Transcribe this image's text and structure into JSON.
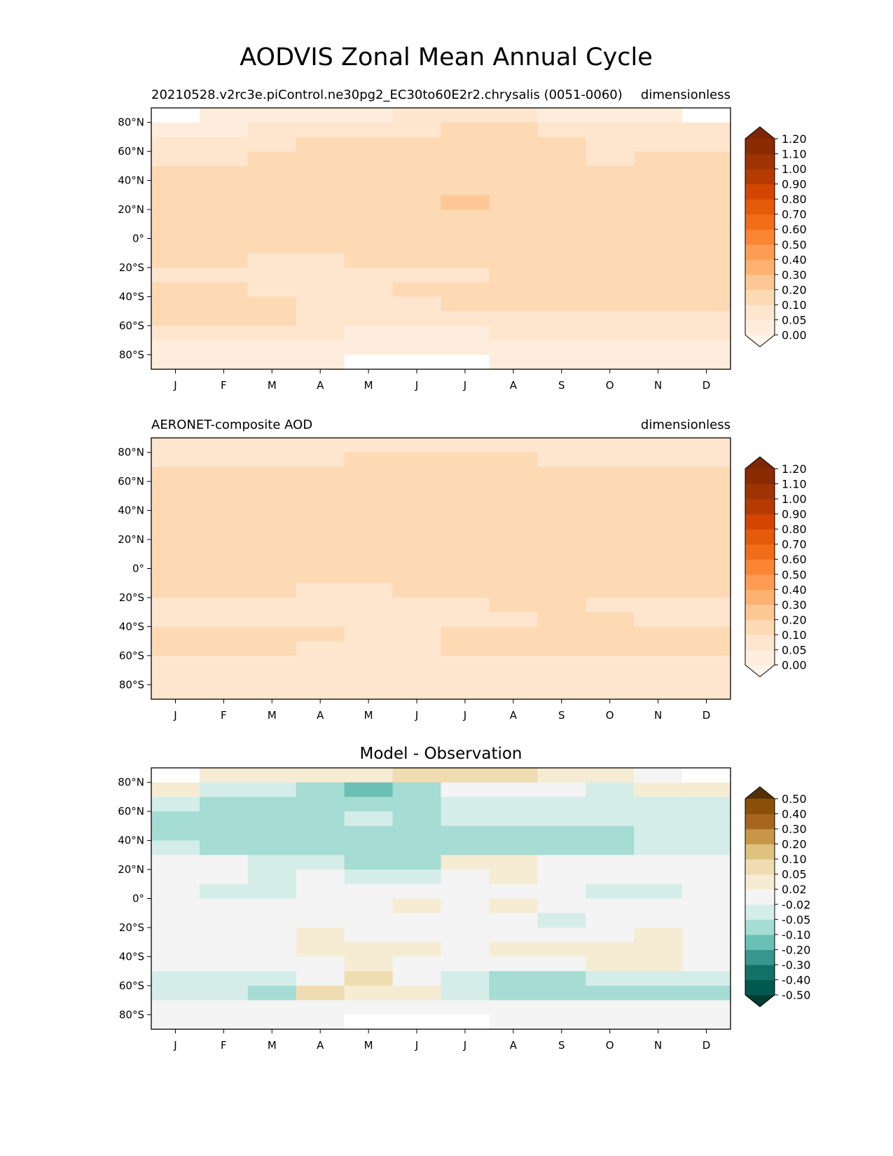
{
  "figure_title": "AODVIS Zonal Mean Annual Cycle",
  "months": [
    "J",
    "F",
    "M",
    "A",
    "M",
    "J",
    "J",
    "A",
    "S",
    "O",
    "N",
    "D"
  ],
  "lat_ticks": [
    80,
    60,
    40,
    20,
    0,
    -20,
    -40,
    -60,
    -80
  ],
  "lat_tick_labels": [
    "80°N",
    "60°N",
    "40°N",
    "20°N",
    "0°",
    "20°S",
    "40°S",
    "60°S",
    "80°S"
  ],
  "lat_bands": [
    85,
    75,
    65,
    55,
    45,
    35,
    25,
    15,
    5,
    -5,
    -15,
    -25,
    -35,
    -45,
    -55,
    -65,
    -75,
    -85
  ],
  "chart_data": [
    {
      "type": "heatmap",
      "name": "model",
      "title_left": "20210528.v2rc3e.piControl.ne30pg2_EC30to60E2r2.chrysalis (0051-0060)",
      "title_center": "",
      "title_right": "dimensionless",
      "xlabel": "",
      "ylabel": "",
      "ylim": [
        -90,
        90
      ],
      "colorbar": {
        "levels": [
          0.0,
          0.05,
          0.1,
          0.2,
          0.3,
          0.4,
          0.5,
          0.6,
          0.7,
          0.8,
          0.9,
          1.0,
          1.1,
          1.2
        ],
        "labels": [
          "0.00",
          "0.05",
          "0.10",
          "0.20",
          "0.30",
          "0.40",
          "0.50",
          "0.60",
          "0.70",
          "0.80",
          "0.90",
          "1.00",
          "1.10",
          "1.20"
        ],
        "colors": [
          "#fff5eb",
          "#feeddc",
          "#fee6ce",
          "#fdd9b4",
          "#fdc895",
          "#fdb272",
          "#fd9c52",
          "#fa8532",
          "#f26d18",
          "#e55a0b",
          "#d44501",
          "#b43b02",
          "#9e3303",
          "#8a2b03",
          "#7f2704"
        ]
      },
      "values": [
        [
          null,
          0.03,
          0.04,
          0.04,
          0.04,
          0.08,
          0.09,
          0.08,
          0.04,
          0.02,
          0.01,
          null
        ],
        [
          0.04,
          0.04,
          0.05,
          0.07,
          0.08,
          0.09,
          0.12,
          0.11,
          0.07,
          0.05,
          0.05,
          0.06
        ],
        [
          0.06,
          0.07,
          0.09,
          0.11,
          0.11,
          0.12,
          0.13,
          0.13,
          0.1,
          0.08,
          0.08,
          0.08
        ],
        [
          0.08,
          0.09,
          0.12,
          0.14,
          0.14,
          0.13,
          0.13,
          0.13,
          0.12,
          0.09,
          0.1,
          0.1
        ],
        [
          0.1,
          0.11,
          0.13,
          0.15,
          0.15,
          0.13,
          0.13,
          0.13,
          0.12,
          0.11,
          0.12,
          0.12
        ],
        [
          0.13,
          0.14,
          0.14,
          0.15,
          0.14,
          0.14,
          0.16,
          0.17,
          0.14,
          0.13,
          0.14,
          0.14
        ],
        [
          0.15,
          0.15,
          0.16,
          0.19,
          0.15,
          0.17,
          0.22,
          0.19,
          0.17,
          0.14,
          0.15,
          0.15
        ],
        [
          0.18,
          0.17,
          0.19,
          0.18,
          0.15,
          0.15,
          0.16,
          0.16,
          0.15,
          0.14,
          0.15,
          0.15
        ],
        [
          0.15,
          0.14,
          0.13,
          0.13,
          0.13,
          0.13,
          0.14,
          0.14,
          0.14,
          0.14,
          0.14,
          0.14
        ],
        [
          0.13,
          0.13,
          0.11,
          0.11,
          0.13,
          0.13,
          0.13,
          0.13,
          0.13,
          0.13,
          0.13,
          0.13
        ],
        [
          0.11,
          0.11,
          0.09,
          0.09,
          0.1,
          0.11,
          0.11,
          0.13,
          0.13,
          0.13,
          0.13,
          0.12
        ],
        [
          0.09,
          0.09,
          0.08,
          0.08,
          0.09,
          0.09,
          0.09,
          0.12,
          0.12,
          0.12,
          0.11,
          0.11
        ],
        [
          0.1,
          0.1,
          0.09,
          0.09,
          0.09,
          0.1,
          0.12,
          0.12,
          0.12,
          0.12,
          0.12,
          0.11
        ],
        [
          0.13,
          0.13,
          0.12,
          0.09,
          0.09,
          0.09,
          0.11,
          0.11,
          0.11,
          0.11,
          0.12,
          0.12
        ],
        [
          0.1,
          0.1,
          0.1,
          0.09,
          0.08,
          0.08,
          0.08,
          0.09,
          0.09,
          0.09,
          0.09,
          0.09
        ],
        [
          0.06,
          0.05,
          0.05,
          0.05,
          0.04,
          0.04,
          0.04,
          0.05,
          0.05,
          0.05,
          0.05,
          0.05
        ],
        [
          0.04,
          0.04,
          0.04,
          0.04,
          0.03,
          0.02,
          0.02,
          0.03,
          0.04,
          0.04,
          0.04,
          0.04
        ],
        [
          0.03,
          0.03,
          0.03,
          0.02,
          null,
          null,
          null,
          0.01,
          0.03,
          0.03,
          0.03,
          0.03
        ]
      ]
    },
    {
      "type": "heatmap",
      "name": "observation",
      "title_left": "AERONET-composite AOD",
      "title_center": "",
      "title_right": "dimensionless",
      "xlabel": "",
      "ylabel": "",
      "ylim": [
        -90,
        90
      ],
      "colorbar": {
        "levels": [
          0.0,
          0.05,
          0.1,
          0.2,
          0.3,
          0.4,
          0.5,
          0.6,
          0.7,
          0.8,
          0.9,
          1.0,
          1.1,
          1.2
        ],
        "labels": [
          "0.00",
          "0.05",
          "0.10",
          "0.20",
          "0.30",
          "0.40",
          "0.50",
          "0.60",
          "0.70",
          "0.80",
          "0.90",
          "1.00",
          "1.10",
          "1.20"
        ],
        "colors": [
          "#fff5eb",
          "#feeddc",
          "#fee6ce",
          "#fdd9b4",
          "#fdc895",
          "#fdb272",
          "#fd9c52",
          "#fa8532",
          "#f26d18",
          "#e55a0b",
          "#d44501",
          "#b43b02",
          "#9e3303",
          "#8a2b03",
          "#7f2704"
        ]
      },
      "values": [
        [
          0.06,
          0.06,
          0.06,
          0.06,
          0.06,
          0.06,
          0.06,
          0.06,
          0.06,
          0.06,
          0.06,
          0.06
        ],
        [
          0.08,
          0.08,
          0.09,
          0.09,
          0.11,
          0.11,
          0.11,
          0.11,
          0.09,
          0.09,
          0.08,
          0.08
        ],
        [
          0.11,
          0.12,
          0.12,
          0.13,
          0.13,
          0.13,
          0.13,
          0.13,
          0.12,
          0.11,
          0.11,
          0.1
        ],
        [
          0.12,
          0.13,
          0.14,
          0.15,
          0.15,
          0.15,
          0.15,
          0.15,
          0.13,
          0.12,
          0.12,
          0.12
        ],
        [
          0.13,
          0.13,
          0.16,
          0.16,
          0.16,
          0.16,
          0.16,
          0.16,
          0.13,
          0.12,
          0.12,
          0.12
        ],
        [
          0.13,
          0.13,
          0.16,
          0.16,
          0.16,
          0.16,
          0.16,
          0.16,
          0.14,
          0.12,
          0.12,
          0.12
        ],
        [
          0.14,
          0.14,
          0.16,
          0.16,
          0.16,
          0.16,
          0.16,
          0.15,
          0.15,
          0.12,
          0.12,
          0.12
        ],
        [
          0.16,
          0.15,
          0.15,
          0.15,
          0.15,
          0.14,
          0.14,
          0.14,
          0.13,
          0.12,
          0.12,
          0.12
        ],
        [
          0.13,
          0.13,
          0.14,
          0.14,
          0.13,
          0.13,
          0.13,
          0.13,
          0.13,
          0.12,
          0.12,
          0.12
        ],
        [
          0.12,
          0.12,
          0.12,
          0.12,
          0.12,
          0.12,
          0.12,
          0.12,
          0.16,
          0.12,
          0.12,
          0.12
        ],
        [
          0.11,
          0.1,
          0.1,
          0.09,
          0.09,
          0.1,
          0.1,
          0.11,
          0.11,
          0.11,
          0.1,
          0.1
        ],
        [
          0.09,
          0.09,
          0.09,
          0.09,
          0.09,
          0.09,
          0.09,
          0.1,
          0.1,
          0.09,
          0.09,
          0.09
        ],
        [
          0.09,
          0.09,
          0.09,
          0.09,
          0.09,
          0.09,
          0.09,
          0.09,
          0.11,
          0.11,
          0.09,
          0.09
        ],
        [
          0.12,
          0.12,
          0.12,
          0.1,
          0.09,
          0.09,
          0.12,
          0.12,
          0.12,
          0.12,
          0.12,
          0.12
        ],
        [
          0.12,
          0.12,
          0.12,
          0.08,
          0.07,
          0.08,
          0.11,
          0.11,
          0.12,
          0.12,
          0.12,
          0.12
        ],
        [
          0.08,
          0.07,
          0.07,
          0.06,
          0.06,
          0.06,
          0.07,
          0.08,
          0.08,
          0.07,
          0.07,
          0.07
        ],
        [
          0.06,
          0.06,
          0.06,
          0.06,
          0.06,
          0.06,
          0.06,
          0.06,
          0.06,
          0.06,
          0.06,
          0.06
        ],
        [
          0.06,
          0.06,
          0.06,
          0.06,
          0.06,
          0.06,
          0.06,
          0.06,
          0.06,
          0.06,
          0.06,
          0.06
        ]
      ]
    },
    {
      "type": "heatmap",
      "name": "difference",
      "title_left": "",
      "title_center": "Model - Observation",
      "title_right": "",
      "xlabel": "",
      "ylabel": "",
      "ylim": [
        -90,
        90
      ],
      "colorbar": {
        "levels": [
          -0.5,
          -0.4,
          -0.3,
          -0.2,
          -0.1,
          -0.05,
          -0.02,
          0.02,
          0.05,
          0.1,
          0.2,
          0.3,
          0.4,
          0.5
        ],
        "labels": [
          "-0.50",
          "-0.40",
          "-0.30",
          "-0.20",
          "-0.10",
          "-0.05",
          "-0.02",
          "0.02",
          "0.05",
          "0.10",
          "0.20",
          "0.30",
          "0.40",
          "0.50"
        ],
        "colors": [
          "#003c30",
          "#01594f",
          "#137167",
          "#35978f",
          "#6bc0b5",
          "#a5dcd3",
          "#d4ede9",
          "#f3f4f3",
          "#f6ecd4",
          "#efdcb0",
          "#dfc27d",
          "#c79647",
          "#a6671c",
          "#8a5009",
          "#543005"
        ]
      },
      "values": [
        [
          null,
          0.03,
          0.03,
          0.03,
          0.03,
          0.06,
          0.06,
          0.06,
          0.03,
          0.03,
          0.0,
          null
        ],
        [
          0.03,
          -0.03,
          -0.03,
          -0.06,
          -0.12,
          -0.06,
          0.0,
          0.0,
          0.0,
          -0.03,
          0.03,
          0.03
        ],
        [
          -0.03,
          -0.06,
          -0.06,
          -0.06,
          -0.06,
          -0.06,
          -0.03,
          -0.03,
          -0.03,
          -0.03,
          -0.03,
          -0.03
        ],
        [
          -0.06,
          -0.06,
          -0.06,
          -0.06,
          -0.04,
          -0.06,
          -0.03,
          -0.03,
          -0.03,
          -0.03,
          -0.03,
          -0.03
        ],
        [
          -0.06,
          -0.06,
          -0.06,
          -0.06,
          -0.06,
          -0.06,
          -0.06,
          -0.06,
          -0.06,
          -0.06,
          -0.03,
          -0.03
        ],
        [
          -0.03,
          -0.06,
          -0.06,
          -0.06,
          -0.06,
          -0.06,
          -0.06,
          -0.06,
          -0.06,
          -0.06,
          -0.03,
          -0.03
        ],
        [
          0.0,
          0.0,
          -0.03,
          -0.03,
          -0.06,
          -0.06,
          0.03,
          0.03,
          0.0,
          0.0,
          0.0,
          0.0
        ],
        [
          0.0,
          0.0,
          -0.03,
          0.0,
          -0.03,
          -0.03,
          0.0,
          0.03,
          0.0,
          0.0,
          0.0,
          0.0
        ],
        [
          0.0,
          -0.03,
          -0.03,
          0.0,
          0.0,
          0.0,
          0.0,
          0.0,
          0.0,
          -0.03,
          -0.03,
          0.0
        ],
        [
          0.0,
          0.0,
          0.0,
          0.0,
          0.0,
          0.03,
          0.0,
          0.03,
          0.0,
          0.0,
          0.0,
          0.0
        ],
        [
          0.0,
          0.0,
          0.0,
          0.0,
          0.0,
          0.0,
          0.0,
          0.0,
          -0.03,
          0.0,
          0.0,
          0.0
        ],
        [
          0.0,
          0.0,
          0.0,
          0.03,
          0.0,
          0.0,
          0.0,
          0.0,
          0.0,
          0.0,
          0.03,
          0.0
        ],
        [
          0.0,
          0.0,
          0.0,
          0.03,
          0.03,
          0.03,
          0.0,
          0.03,
          0.03,
          0.03,
          0.03,
          0.0
        ],
        [
          0.0,
          0.0,
          0.0,
          0.0,
          0.03,
          0.0,
          0.0,
          0.0,
          0.0,
          0.03,
          0.03,
          0.0
        ],
        [
          -0.03,
          -0.03,
          -0.03,
          0.0,
          0.06,
          0.0,
          -0.03,
          -0.06,
          -0.06,
          -0.03,
          -0.03,
          -0.03
        ],
        [
          -0.03,
          -0.03,
          -0.06,
          0.06,
          0.03,
          0.03,
          -0.03,
          -0.06,
          -0.06,
          -0.06,
          -0.06,
          -0.06
        ],
        [
          0.0,
          0.0,
          0.0,
          0.0,
          0.0,
          0.0,
          0.0,
          0.0,
          0.0,
          0.0,
          0.0,
          0.0
        ],
        [
          0.0,
          0.0,
          0.0,
          0.0,
          null,
          null,
          null,
          0.0,
          0.0,
          0.0,
          0.0,
          0.0
        ]
      ]
    }
  ]
}
